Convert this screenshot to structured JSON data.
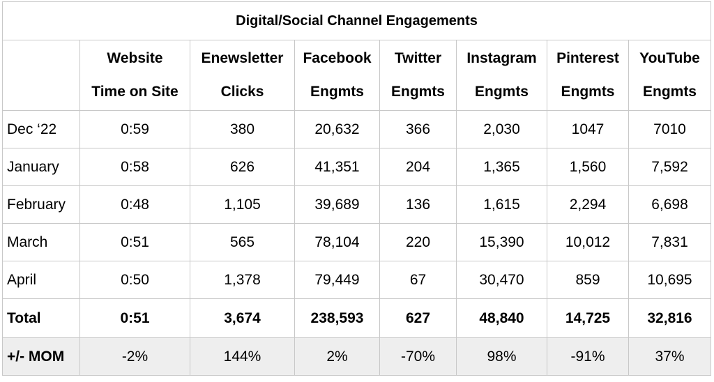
{
  "title": "Digital/Social Channel Engagements",
  "columns": [
    {
      "line1": "Website",
      "line2": "Time on Site"
    },
    {
      "line1": "Enewsletter",
      "line2": "Clicks"
    },
    {
      "line1": "Facebook",
      "line2": "Engmts"
    },
    {
      "line1": "Twitter",
      "line2": "Engmts"
    },
    {
      "line1": "Instagram",
      "line2": "Engmts"
    },
    {
      "line1": "Pinterest",
      "line2": "Engmts"
    },
    {
      "line1": "YouTube",
      "line2": "Engmts"
    }
  ],
  "rows": [
    {
      "label": "Dec ‘22",
      "values": [
        "0:59",
        "380",
        "20,632",
        "366",
        "2,030",
        "1047",
        "7010"
      ]
    },
    {
      "label": "January",
      "values": [
        "0:58",
        "626",
        "41,351",
        "204",
        "1,365",
        "1,560",
        "7,592"
      ]
    },
    {
      "label": "February",
      "values": [
        "0:48",
        "1,105",
        "39,689",
        "136",
        "1,615",
        "2,294",
        "6,698"
      ]
    },
    {
      "label": "March",
      "values": [
        "0:51",
        "565",
        "78,104",
        "220",
        "15,390",
        "10,012",
        "7,831"
      ]
    },
    {
      "label": "April",
      "values": [
        "0:50",
        "1,378",
        "79,449",
        "67",
        "30,470",
        "859",
        "10,695"
      ]
    }
  ],
  "total": {
    "label": "Total",
    "values": [
      "0:51",
      "3,674",
      "238,593",
      "627",
      "48,840",
      "14,725",
      "32,816"
    ]
  },
  "mom": {
    "label": "+/- MOM",
    "values": [
      "-2%",
      "144%",
      "2%",
      "-70%",
      "98%",
      "-91%",
      "37%"
    ]
  },
  "colors": {
    "border": "#c8c8c8",
    "mom_row_background": "#eeeeee"
  }
}
